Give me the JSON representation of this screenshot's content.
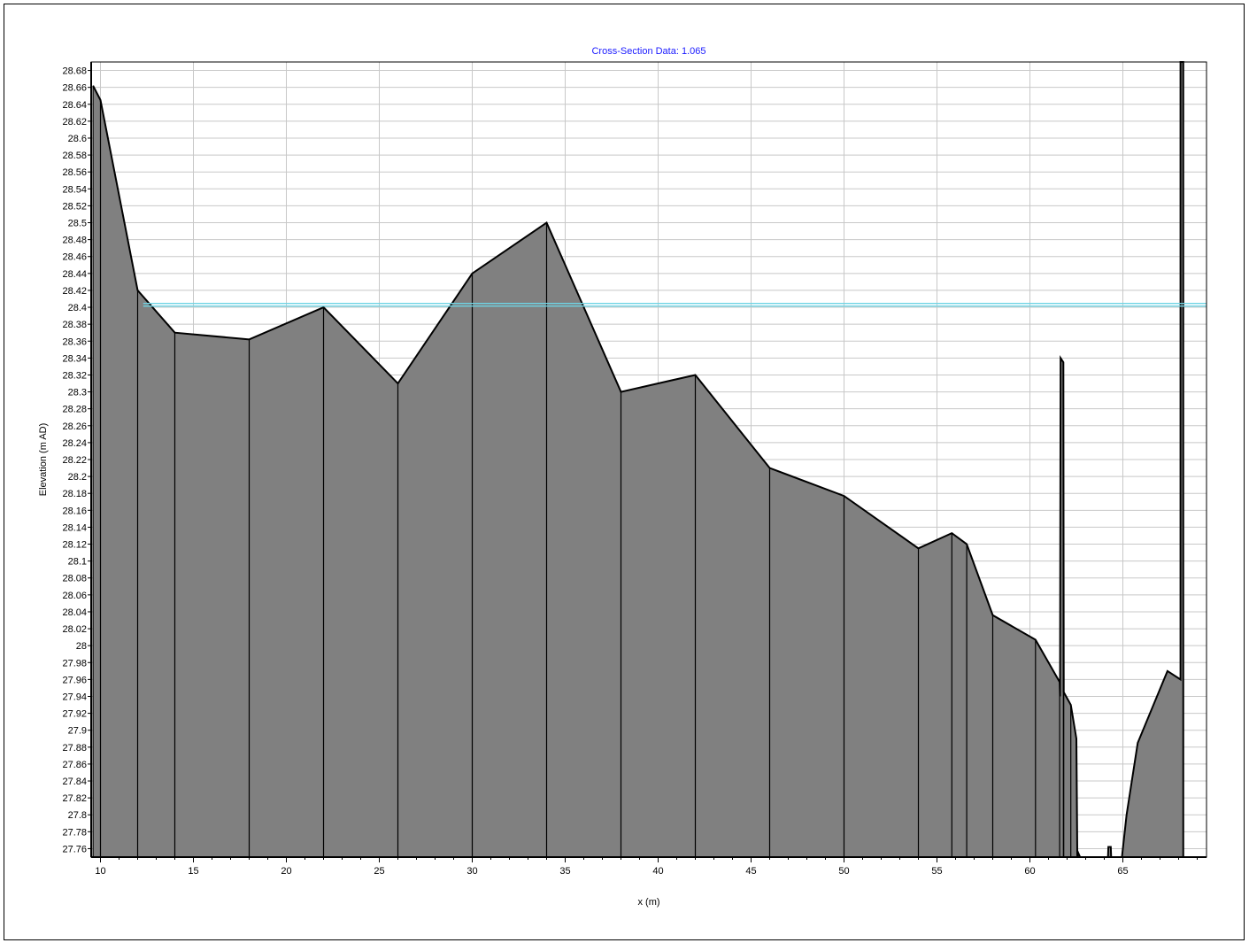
{
  "chart_data": {
    "type": "area",
    "title": "Cross-Section Data: 1.065",
    "xlabel": "x (m)",
    "ylabel": "Elevation (m AD)",
    "xlim": [
      9.5,
      69.5
    ],
    "ylim": [
      27.75,
      28.69
    ],
    "x_ticks": [
      "10",
      "15",
      "20",
      "25",
      "30",
      "35",
      "40",
      "45",
      "50",
      "55",
      "60",
      "65"
    ],
    "y_ticks": [
      "28.68",
      "28.66",
      "28.64",
      "28.62",
      "28.6",
      "28.58",
      "28.56",
      "28.54",
      "28.52",
      "28.5",
      "28.48",
      "28.46",
      "28.44",
      "28.42",
      "28.4",
      "28.38",
      "28.36",
      "28.34",
      "28.32",
      "28.3",
      "28.28",
      "28.26",
      "28.24",
      "28.22",
      "28.2",
      "28.18",
      "28.16",
      "28.14",
      "28.12",
      "28.1",
      "28.08",
      "28.06",
      "28.04",
      "28.02",
      "28",
      "27.98",
      "27.96",
      "27.94",
      "27.92",
      "27.9",
      "27.88",
      "27.86",
      "27.84",
      "27.82",
      "27.8",
      "27.78",
      "27.76"
    ],
    "grid": true,
    "water_level": 28.403,
    "series": [
      {
        "points": [
          [
            9.6,
            28.662
          ],
          [
            10.0,
            28.645
          ],
          [
            12.0,
            28.42
          ],
          [
            14.0,
            28.37
          ],
          [
            18.0,
            28.362
          ],
          [
            22.0,
            28.4
          ],
          [
            26.0,
            28.31
          ],
          [
            30.0,
            28.44
          ],
          [
            34.0,
            28.5
          ],
          [
            38.0,
            28.3
          ],
          [
            42.0,
            28.32
          ],
          [
            46.0,
            28.21
          ],
          [
            50.0,
            28.177
          ],
          [
            54.0,
            28.115
          ],
          [
            55.8,
            28.133
          ],
          [
            56.6,
            28.12
          ],
          [
            58.0,
            28.036
          ],
          [
            60.3,
            28.007
          ],
          [
            61.6,
            27.957
          ],
          [
            61.62,
            27.94
          ],
          [
            61.65,
            28.34
          ],
          [
            61.8,
            28.335
          ],
          [
            61.82,
            27.945
          ],
          [
            62.2,
            27.93
          ],
          [
            62.5,
            27.89
          ],
          [
            62.55,
            27.75
          ],
          [
            62.6,
            27.755
          ],
          [
            62.7,
            27.75
          ],
          [
            64.2,
            27.75
          ],
          [
            64.22,
            27.762
          ],
          [
            64.35,
            27.762
          ],
          [
            64.37,
            27.75
          ],
          [
            64.95,
            27.75
          ],
          [
            65.2,
            27.8
          ],
          [
            65.8,
            27.885
          ],
          [
            67.4,
            27.97
          ],
          [
            68.1,
            27.96
          ],
          [
            68.1,
            28.69
          ],
          [
            68.25,
            28.69
          ],
          [
            68.25,
            27.75
          ]
        ]
      }
    ],
    "colors": {
      "fill": "#808080",
      "outline": "#000000",
      "grid": "#c8c8c8",
      "water": "#6fd4e4",
      "title": "#1a1aff"
    }
  }
}
